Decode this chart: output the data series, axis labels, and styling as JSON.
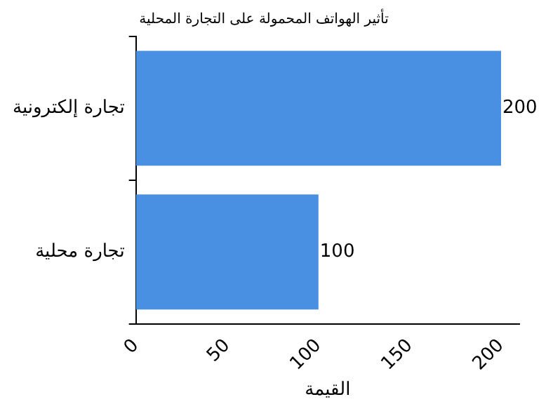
{
  "chart_data": {
    "type": "bar",
    "orientation": "horizontal",
    "title": "تأثير الهواتف المحمولة على التجارة المحلية",
    "xlabel": "القيمة",
    "categories": [
      "تجارة إلكترونية",
      "تجارة محلية"
    ],
    "values": [
      200,
      100
    ],
    "color": "#4a90e2",
    "xlim": [
      0,
      210
    ],
    "xticks": [
      0,
      50,
      100,
      150,
      200
    ],
    "data_labels": true,
    "grid": false,
    "legend": false
  }
}
